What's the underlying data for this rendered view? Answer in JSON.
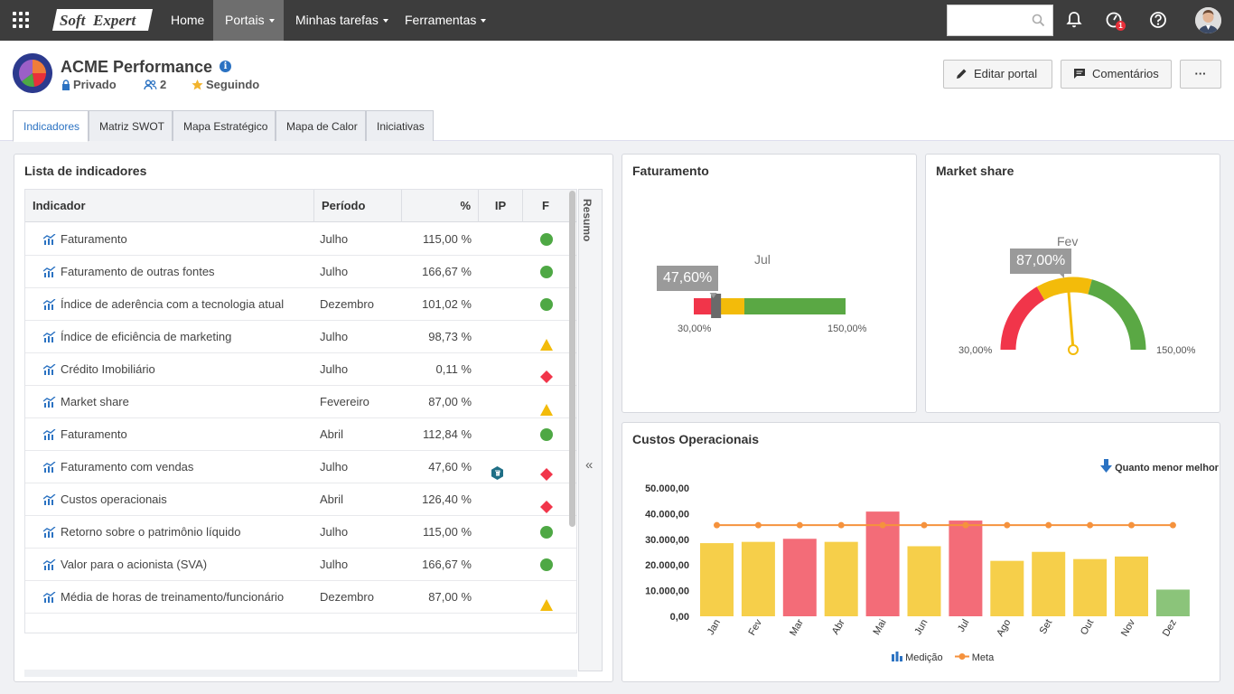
{
  "topbar": {
    "logo_text_left": "Soft",
    "logo_text_right": "Expert",
    "nav": [
      {
        "label": "Home",
        "active": false,
        "dropdown": false
      },
      {
        "label": "Portais",
        "active": true,
        "dropdown": true
      },
      {
        "label": "Minhas tarefas",
        "active": false,
        "dropdown": true
      },
      {
        "label": "Ferramentas",
        "active": false,
        "dropdown": true
      }
    ],
    "search_value": "",
    "notification_badge": "1"
  },
  "portal": {
    "title": "ACME Performance",
    "privacy": "Privado",
    "members": "2",
    "follow": "Seguindo",
    "buttons": {
      "edit": "Editar portal",
      "comments": "Comentários",
      "more": "···"
    },
    "tabs": [
      {
        "label": "Indicadores",
        "active": true
      },
      {
        "label": "Matriz SWOT",
        "active": false
      },
      {
        "label": "Mapa Estratégico",
        "active": false
      },
      {
        "label": "Mapa de Calor",
        "active": false
      },
      {
        "label": "Iniciativas",
        "active": false
      }
    ]
  },
  "indicator_list": {
    "title": "Lista de indicadores",
    "columns": {
      "name": "Indicador",
      "period": "Período",
      "pct": "%",
      "ip": "IP",
      "f": "F"
    },
    "side_panel_label": "Resumo",
    "rows": [
      {
        "name": "Faturamento",
        "period": "Julho",
        "pct": "115,00 %",
        "ip": "",
        "status": "green-circle"
      },
      {
        "name": "Faturamento de outras fontes",
        "period": "Julho",
        "pct": "166,67 %",
        "ip": "",
        "status": "green-circle"
      },
      {
        "name": "Índice de aderência com a tecnologia atual",
        "period": "Dezembro",
        "pct": "101,02 %",
        "ip": "",
        "status": "green-circle"
      },
      {
        "name": "Índice de eficiência de marketing",
        "period": "Julho",
        "pct": "98,73 %",
        "ip": "",
        "status": "yellow-triangle"
      },
      {
        "name": "Crédito Imobiliário",
        "period": "Julho",
        "pct": "0,11 %",
        "ip": "",
        "status": "red-diamond"
      },
      {
        "name": "Market share",
        "period": "Fevereiro",
        "pct": "87,00 %",
        "ip": "",
        "status": "yellow-triangle"
      },
      {
        "name": "Faturamento",
        "period": "Abril",
        "pct": "112,84 %",
        "ip": "",
        "status": "green-circle"
      },
      {
        "name": "Faturamento com vendas",
        "period": "Julho",
        "pct": "47,60 %",
        "ip": "hexagon-icon",
        "status": "red-diamond"
      },
      {
        "name": "Custos operacionais",
        "period": "Abril",
        "pct": "126,40 %",
        "ip": "",
        "status": "red-diamond"
      },
      {
        "name": "Retorno sobre o patrimônio líquido",
        "period": "Julho",
        "pct": "115,00 %",
        "ip": "",
        "status": "green-circle"
      },
      {
        "name": "Valor para o acionista (SVA)",
        "period": "Julho",
        "pct": "166,67 %",
        "ip": "",
        "status": "green-circle"
      },
      {
        "name": "Média de horas de treinamento/funcionário",
        "period": "Dezembro",
        "pct": "87,00 %",
        "ip": "",
        "status": "yellow-triangle"
      }
    ]
  },
  "faturamento": {
    "title": "Faturamento",
    "period": "Jul",
    "value_label": "47,60%",
    "value": 47.6,
    "min_label": "30,00%",
    "max_label": "150,00%",
    "min": 30,
    "max": 150,
    "band_ends": [
      50,
      70,
      150
    ]
  },
  "market_share": {
    "title": "Market share",
    "period": "Fev",
    "value_label": "87,00%",
    "value": 87,
    "min_label": "30,00%",
    "max_label": "150,00%",
    "min": 30,
    "max": 150,
    "band_ends": [
      70,
      100,
      150
    ]
  },
  "colors": {
    "red": "#f1354a",
    "yellow": "#f3bb0a",
    "green": "#5aa844",
    "blue": "#2b72c2",
    "bar_yellow": "#f6cf4a",
    "bar_red": "#f36c78",
    "bar_green": "#8bc47a",
    "meta": "#f5923d"
  },
  "chart_data": {
    "type": "bar",
    "title": "Custos Operacionais",
    "polarity_label": "Quanto menor melhor",
    "categories": [
      "Jan",
      "Fev",
      "Mar",
      "Abr",
      "Mai",
      "Jun",
      "Jul",
      "Ago",
      "Set",
      "Out",
      "Nov",
      "Dez"
    ],
    "y_ticks": [
      "50.000,00",
      "40.000,00",
      "30.000,00",
      "20.000,00",
      "10.000,00",
      "0,00"
    ],
    "ylim": [
      0,
      50000
    ],
    "series": [
      {
        "name": "Medição",
        "values": [
          28500,
          29000,
          30200,
          29000,
          40800,
          27300,
          37300,
          21600,
          25100,
          22300,
          23300,
          10400
        ],
        "status": [
          "yellow",
          "yellow",
          "red",
          "yellow",
          "red",
          "yellow",
          "red",
          "yellow",
          "yellow",
          "yellow",
          "yellow",
          "green"
        ]
      },
      {
        "name": "Meta",
        "values": [
          35500,
          35500,
          35500,
          35500,
          35500,
          35500,
          35500,
          35500,
          35500,
          35500,
          35500,
          35500
        ]
      }
    ],
    "legend_position": "bottom"
  }
}
